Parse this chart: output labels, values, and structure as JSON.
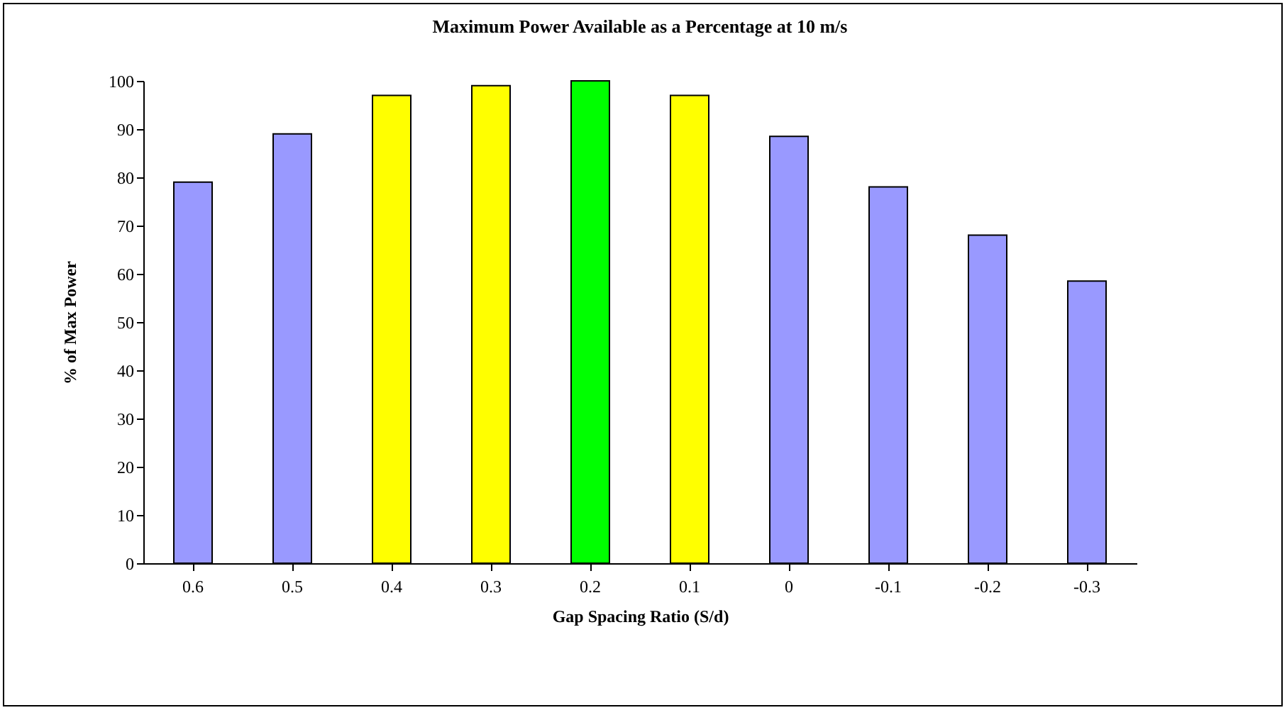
{
  "chart_data": {
    "type": "bar",
    "title": "Maximum Power Available as a Percentage at 10 m/s",
    "xlabel": "Gap Spacing Ratio (S/d)",
    "ylabel": "% of Max Power",
    "categories": [
      "0.6",
      "0.5",
      "0.4",
      "0.3",
      "0.2",
      "0.1",
      "0",
      "-0.1",
      "-0.2",
      "-0.3"
    ],
    "values": [
      79,
      89,
      97,
      99,
      100,
      97,
      88.5,
      78,
      68,
      58.5
    ],
    "colors": [
      "#9999ff",
      "#9999ff",
      "#ffff00",
      "#ffff00",
      "#00ff00",
      "#ffff00",
      "#9999ff",
      "#9999ff",
      "#9999ff",
      "#9999ff"
    ],
    "ylim": [
      0,
      100
    ],
    "yticks": [
      0,
      10,
      20,
      30,
      40,
      50,
      60,
      70,
      80,
      90,
      100
    ],
    "grid": false,
    "legend": false
  }
}
